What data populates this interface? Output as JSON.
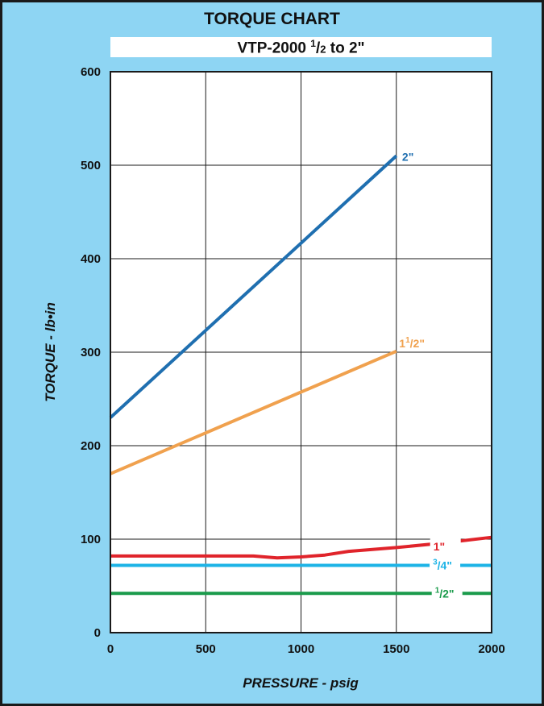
{
  "chart_data": {
    "type": "line",
    "title": "TORQUE CHART",
    "subtitle": {
      "model": "VTP-2000",
      "num": "1",
      "den": "2",
      "rest": " to 2\""
    },
    "xlabel": "PRESSURE - psig",
    "ylabel": "TORQUE - lb•in",
    "xlim": [
      0,
      2000
    ],
    "ylim": [
      0,
      600
    ],
    "xticks": [
      0,
      500,
      1000,
      1500,
      2000
    ],
    "yticks": [
      0,
      100,
      200,
      300,
      400,
      500,
      600
    ],
    "grid": true,
    "colors": {
      "background": "#8ed5f3",
      "plot": "#ffffff",
      "frame": "#1a1a1a"
    },
    "series": [
      {
        "name": "2\"",
        "label_whole": "2\"",
        "label_sup": "",
        "label_den": "",
        "color": "#1f6fb0",
        "x": [
          0,
          1500
        ],
        "y": [
          230,
          510
        ]
      },
      {
        "name": "1 1/2\"",
        "label_whole": "1",
        "label_sup": "1",
        "label_den": "/2\"",
        "color": "#f0a14e",
        "x": [
          0,
          1500
        ],
        "y": [
          170,
          301
        ]
      },
      {
        "name": "1\"",
        "label_whole": "1\"",
        "label_sup": "",
        "label_den": "",
        "color": "#e0242b",
        "x": [
          0,
          750,
          875,
          1000,
          1125,
          1250,
          1500,
          1750,
          2000
        ],
        "y": [
          82,
          82,
          80,
          81,
          83,
          87,
          91,
          96,
          102
        ]
      },
      {
        "name": "3/4\"",
        "label_whole": "",
        "label_sup": "3",
        "label_den": "/4\"",
        "color": "#1cb3e6",
        "x": [
          0,
          2000
        ],
        "y": [
          72,
          72
        ]
      },
      {
        "name": "1/2\"",
        "label_whole": "",
        "label_sup": "1",
        "label_den": "/2\"",
        "color": "#1a9b4b",
        "x": [
          0,
          2000
        ],
        "y": [
          42,
          42
        ]
      }
    ]
  }
}
